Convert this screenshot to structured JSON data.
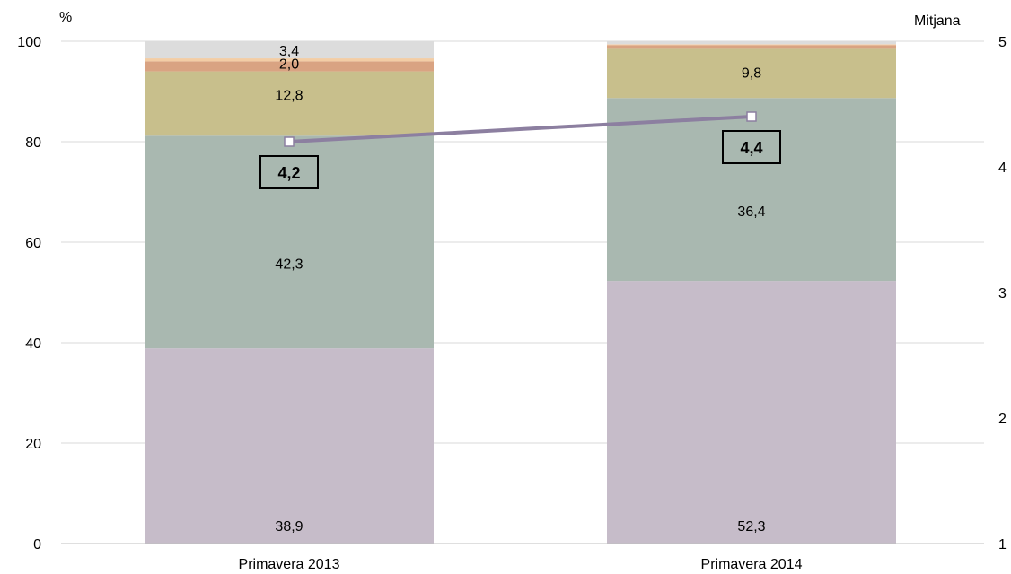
{
  "chart_data": {
    "type": "bar",
    "stacked": true,
    "categories": [
      "Primavera 2013",
      "Primavera 2014"
    ],
    "series": [
      {
        "values": [
          38.9,
          52.3
        ],
        "labels": [
          "38,9",
          "52,3"
        ],
        "color": "#c6bcc9"
      },
      {
        "values": [
          42.3,
          36.4
        ],
        "labels": [
          "42,3",
          "36,4"
        ],
        "color": "#a9b8b0"
      },
      {
        "values": [
          12.8,
          9.8
        ],
        "labels": [
          "12,8",
          "9,8"
        ],
        "color": "#c8bf8c"
      },
      {
        "values": [
          2.0,
          0.7
        ],
        "labels": [
          "2,0",
          ""
        ],
        "color": "#d9a382"
      },
      {
        "values": [
          0.6,
          0.2
        ],
        "labels": [
          "",
          ""
        ],
        "color": "#f3cda5"
      },
      {
        "values": [
          3.4,
          0.6
        ],
        "labels": [
          "3,4",
          ""
        ],
        "color": "#dcdcdc"
      }
    ],
    "left_axis": {
      "unit": "%",
      "ylim": [
        0,
        100
      ],
      "ticks": [
        "0",
        "20",
        "40",
        "60",
        "80",
        "100"
      ]
    },
    "right_axis": {
      "unit": "Mitjana",
      "ylim": [
        1,
        5
      ],
      "ticks": [
        "1",
        "2",
        "3",
        "4",
        "5"
      ]
    },
    "mean_line": {
      "values": [
        4.2,
        4.4
      ],
      "labels": [
        "4,2",
        "4,4"
      ],
      "color": "#8c7fa0"
    },
    "grid": true,
    "legend": "none"
  }
}
